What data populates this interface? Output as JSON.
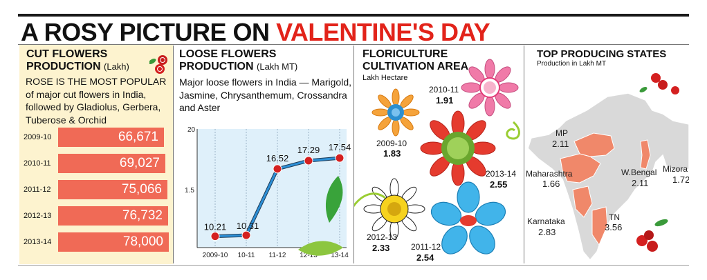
{
  "headline": {
    "part1": "A ROSY PICTURE ON ",
    "part2": "VALENTINE'S DAY"
  },
  "colors": {
    "accent_red": "#e2231a",
    "bar": "#f06a56",
    "panel_cream": "#fdf3cf",
    "line_blue": "#2c8fd6",
    "map_orange": "#f0886a",
    "map_grey": "#d9d9d9"
  },
  "cut_flowers": {
    "title": "CUT FLOWERS PRODUCTION",
    "unit": "(Lakh)",
    "description": "ROSE IS THE MOST POPULAR of major cut flowers in India, followed by Gladiolus, Gerbera, Tuberose & Orchid"
  },
  "loose_flowers": {
    "title": "LOOSE FLOWERS PRODUCTION",
    "unit": "(Lakh MT)",
    "description": "Major loose flowers in India — Marigold, Jasmine, Chrysanthemum, Crossandra and Aster"
  },
  "cultivation": {
    "title": "FLORICULTURE CULTIVATION AREA",
    "unit": "Lakh Hectare"
  },
  "states": {
    "title": "TOP PRODUCING STATES",
    "unit": "Production in Lakh MT"
  },
  "chart_data": [
    {
      "type": "bar",
      "title": "CUT FLOWERS PRODUCTION",
      "categories": [
        "2009-10",
        "2010-11",
        "2011-12",
        "2012-13",
        "2013-14"
      ],
      "values": [
        66671,
        69027,
        75066,
        76732,
        78000
      ],
      "labels": [
        "66,671",
        "69,027",
        "75,066",
        "76,732",
        "78,000"
      ]
    },
    {
      "type": "line",
      "title": "LOOSE FLOWERS PRODUCTION",
      "categories": [
        "2009-10",
        "10-11",
        "11-12",
        "12-13",
        "13-14"
      ],
      "values": [
        10.21,
        10.31,
        16.52,
        17.29,
        17.54
      ],
      "ytick_labels": [
        "20",
        "1.5"
      ],
      "grid": true
    },
    {
      "type": "table",
      "title": "FLORICULTURE CULTIVATION AREA",
      "categories": [
        "2009-10",
        "2010-11",
        "2011-12",
        "2012-13",
        "2013-14"
      ],
      "values": [
        1.83,
        1.91,
        2.54,
        2.33,
        2.55
      ],
      "labels": [
        "1.83",
        "1.91",
        "2.54",
        "2.33",
        "2.55"
      ]
    },
    {
      "type": "table",
      "title": "TOP PRODUCING STATES",
      "categories": [
        "MP",
        "Maharashtra",
        "W.Bengal",
        "Mizoram",
        "Karnataka",
        "TN"
      ],
      "category_labels": [
        "MP",
        "Maharashtra",
        "W.Bengal",
        "Mizora",
        "Karnataka",
        "TN"
      ],
      "values": [
        2.11,
        1.66,
        2.11,
        1.72,
        2.83,
        3.56
      ],
      "labels": [
        "2.11",
        "1.66",
        "2.11",
        "1.72",
        "2.83",
        "3.56"
      ]
    }
  ]
}
